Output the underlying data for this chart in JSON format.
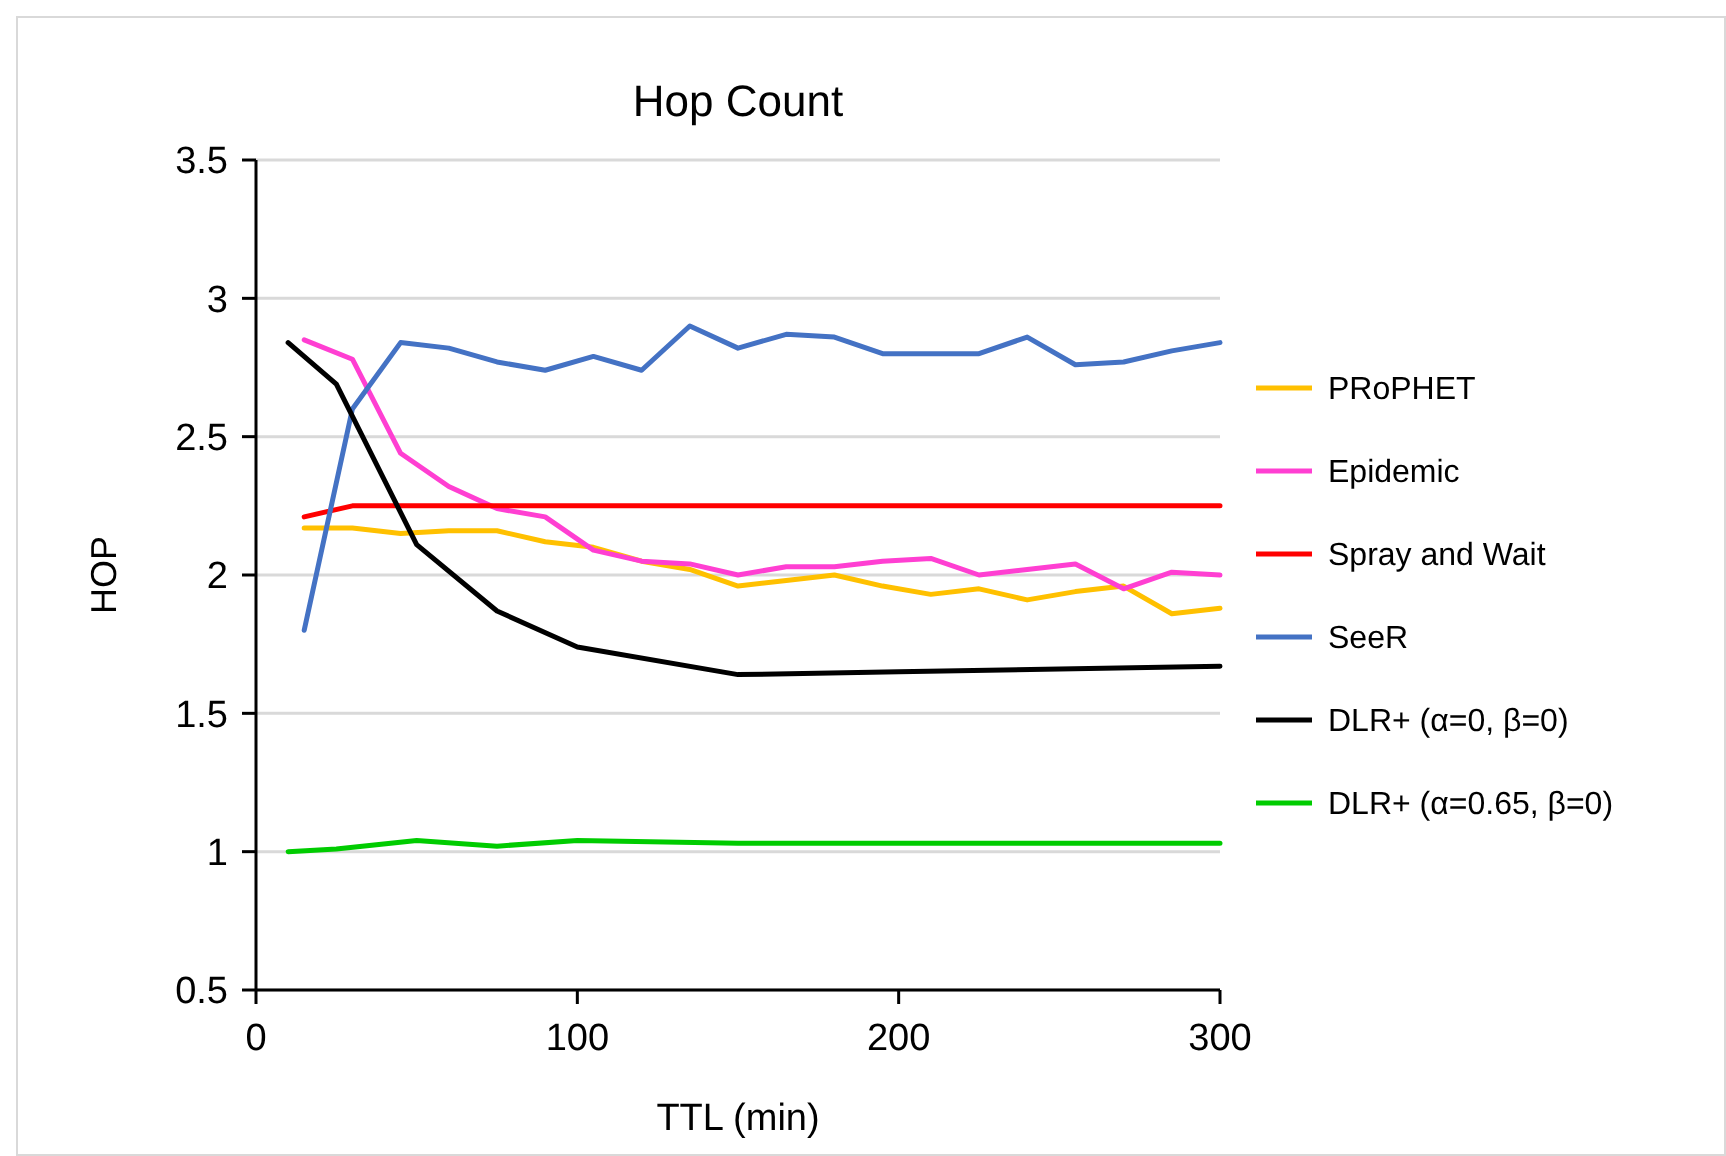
{
  "chart_data": {
    "type": "line",
    "title": "Hop Count",
    "xlabel": "TTL (min)",
    "ylabel": "HOP",
    "xlim": [
      0,
      300
    ],
    "xticks": [
      0,
      100,
      200,
      300
    ],
    "ylim": [
      0.5,
      3.5
    ],
    "yticks": [
      0.5,
      1,
      1.5,
      2,
      2.5,
      3,
      3.5
    ],
    "grid": "y",
    "legend": "right",
    "marker": "none",
    "line_style": "solid",
    "series": [
      {
        "name": "PRoPHET",
        "color": "#ffc000",
        "x": [
          15,
          30,
          45,
          60,
          75,
          90,
          105,
          120,
          135,
          150,
          165,
          180,
          195,
          210,
          225,
          240,
          255,
          270,
          285,
          300
        ],
        "values": [
          2.17,
          2.17,
          2.15,
          2.16,
          2.16,
          2.12,
          2.1,
          2.05,
          2.02,
          1.96,
          1.98,
          2.0,
          1.96,
          1.93,
          1.95,
          1.91,
          1.94,
          1.96,
          1.86,
          1.88
        ]
      },
      {
        "name": "Epidemic",
        "color": "#ff3fd2",
        "x": [
          15,
          30,
          45,
          60,
          75,
          90,
          105,
          120,
          135,
          150,
          165,
          180,
          195,
          210,
          225,
          240,
          255,
          270,
          285,
          300
        ],
        "values": [
          2.85,
          2.78,
          2.44,
          2.32,
          2.24,
          2.21,
          2.09,
          2.05,
          2.04,
          2.0,
          2.03,
          2.03,
          2.05,
          2.06,
          2.0,
          2.02,
          2.04,
          1.95,
          2.01,
          2.0
        ]
      },
      {
        "name": "Spray and Wait",
        "color": "#ff0000",
        "x": [
          15,
          30,
          60,
          100,
          150,
          200,
          250,
          300
        ],
        "values": [
          2.21,
          2.25,
          2.25,
          2.25,
          2.25,
          2.25,
          2.25,
          2.25
        ]
      },
      {
        "name": "SeeR",
        "color": "#4472c4",
        "x": [
          15,
          30,
          45,
          60,
          75,
          90,
          105,
          120,
          135,
          150,
          165,
          180,
          195,
          210,
          225,
          240,
          255,
          270,
          285,
          300
        ],
        "values": [
          1.8,
          2.6,
          2.84,
          2.82,
          2.77,
          2.74,
          2.79,
          2.74,
          2.9,
          2.82,
          2.87,
          2.86,
          2.8,
          2.8,
          2.8,
          2.86,
          2.76,
          2.77,
          2.81,
          2.84
        ]
      },
      {
        "name": "DLR+ (α=0, β=0)",
        "color": "#000000",
        "x": [
          10,
          25,
          50,
          75,
          100,
          150,
          200,
          300
        ],
        "values": [
          2.84,
          2.69,
          2.11,
          1.87,
          1.74,
          1.64,
          1.65,
          1.67
        ]
      },
      {
        "name": "DLR+ (α=0.65, β=0)",
        "color": "#00cc00",
        "x": [
          10,
          25,
          50,
          75,
          100,
          150,
          200,
          300
        ],
        "values": [
          1.0,
          1.01,
          1.04,
          1.02,
          1.04,
          1.03,
          1.03,
          1.03
        ]
      }
    ]
  }
}
